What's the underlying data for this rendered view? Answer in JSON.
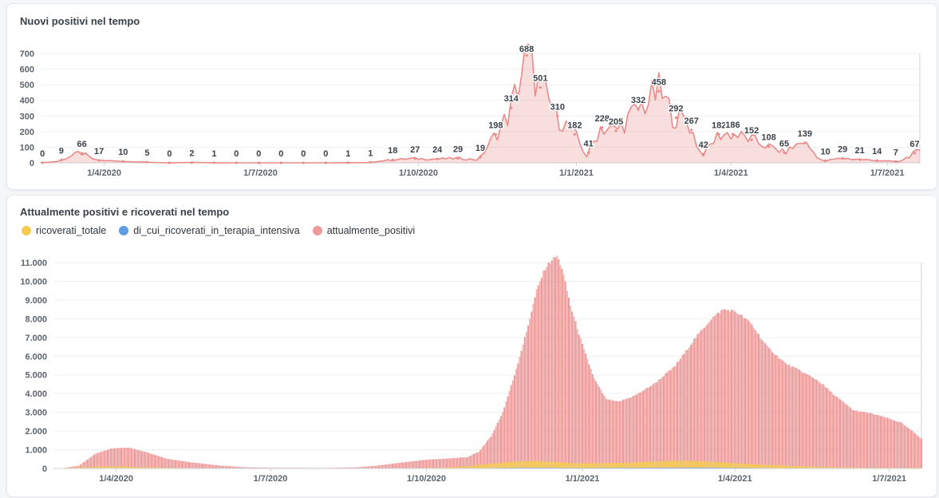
{
  "chart_data": [
    {
      "type": "area",
      "title": "Nuovi positivi nel tempo",
      "xlabel": "",
      "ylabel": "",
      "ylim": [
        0,
        700
      ],
      "y_ticks": [
        "0",
        "100",
        "200",
        "300",
        "400",
        "500",
        "600",
        "700"
      ],
      "x_range": [
        "2020-02-24",
        "2021-07-20"
      ],
      "x_ticks": [
        {
          "date": "2020-04-01",
          "label": "1/4/2020"
        },
        {
          "date": "2020-07-01",
          "label": "1/7/2020"
        },
        {
          "date": "2020-10-01",
          "label": "1/10/2020"
        },
        {
          "date": "2021-01-01",
          "label": "1/1/2021"
        },
        {
          "date": "2021-04-01",
          "label": "1/4/2021"
        },
        {
          "date": "2021-07-01",
          "label": "1/7/2021"
        }
      ],
      "grid": true,
      "color": "#ea8a8a",
      "series": [
        {
          "points": [
            [
              "2020-02-24",
              0
            ],
            [
              "2020-03-05",
              9
            ],
            [
              "2020-03-18",
              66
            ],
            [
              "2020-03-27",
              17
            ],
            [
              "2020-04-10",
              10
            ],
            [
              "2020-04-24",
              5
            ],
            [
              "2020-05-07",
              0
            ],
            [
              "2020-05-20",
              2
            ],
            [
              "2020-06-02",
              1
            ],
            [
              "2020-06-15",
              0
            ],
            [
              "2020-06-28",
              0
            ],
            [
              "2020-07-11",
              0
            ],
            [
              "2020-07-24",
              0
            ],
            [
              "2020-08-06",
              0
            ],
            [
              "2020-08-19",
              1
            ],
            [
              "2020-09-01",
              1
            ],
            [
              "2020-09-14",
              18
            ],
            [
              "2020-09-27",
              27
            ],
            [
              "2020-10-10",
              24
            ],
            [
              "2020-10-23",
              29
            ],
            [
              "2020-11-05",
              19
            ],
            [
              "2020-11-16",
              198
            ],
            [
              "2020-11-23",
              314
            ],
            [
              "2020-12-03",
              688
            ],
            [
              "2020-12-10",
              501
            ],
            [
              "2020-12-20",
              310
            ],
            [
              "2020-12-31",
              182
            ],
            [
              "2021-01-07",
              41
            ],
            [
              "2021-01-15",
              228
            ],
            [
              "2021-01-24",
              205
            ],
            [
              "2021-02-05",
              332
            ],
            [
              "2021-02-18",
              458
            ],
            [
              "2021-02-27",
              292
            ],
            [
              "2021-03-07",
              267
            ],
            [
              "2021-03-15",
              42
            ],
            [
              "2021-03-25",
              182
            ],
            [
              "2021-04-01",
              186
            ],
            [
              "2021-04-12",
              152
            ],
            [
              "2021-04-22",
              108
            ],
            [
              "2021-05-02",
              65
            ],
            [
              "2021-05-13",
              139
            ],
            [
              "2021-05-24",
              10
            ],
            [
              "2021-06-04",
              29
            ],
            [
              "2021-06-15",
              21
            ],
            [
              "2021-06-26",
              14
            ],
            [
              "2021-07-08",
              7
            ],
            [
              "2021-07-18",
              67
            ]
          ]
        }
      ],
      "data_labels": [
        {
          "date": "2020-02-25",
          "label": "0"
        },
        {
          "date": "2020-03-07",
          "label": "9"
        },
        {
          "date": "2020-03-19",
          "label": "66"
        },
        {
          "date": "2020-03-29",
          "label": "17"
        },
        {
          "date": "2020-04-12",
          "label": "10"
        },
        {
          "date": "2020-04-26",
          "label": "5"
        },
        {
          "date": "2020-05-09",
          "label": "0"
        },
        {
          "date": "2020-05-22",
          "label": "2"
        },
        {
          "date": "2020-06-04",
          "label": "1"
        },
        {
          "date": "2020-06-17",
          "label": "0"
        },
        {
          "date": "2020-06-30",
          "label": "0"
        },
        {
          "date": "2020-07-13",
          "label": "0"
        },
        {
          "date": "2020-07-26",
          "label": "0"
        },
        {
          "date": "2020-08-08",
          "label": "0"
        },
        {
          "date": "2020-08-21",
          "label": "1"
        },
        {
          "date": "2020-09-03",
          "label": "1"
        },
        {
          "date": "2020-09-16",
          "label": "18"
        },
        {
          "date": "2020-09-29",
          "label": "27"
        },
        {
          "date": "2020-10-12",
          "label": "24"
        },
        {
          "date": "2020-10-24",
          "label": "29"
        },
        {
          "date": "2020-11-06",
          "label": "19"
        },
        {
          "date": "2020-11-15",
          "label": "198"
        },
        {
          "date": "2020-11-24",
          "label": "314"
        },
        {
          "date": "2020-12-03",
          "label": "688"
        },
        {
          "date": "2020-12-11",
          "label": "501"
        },
        {
          "date": "2020-12-21",
          "label": "310"
        },
        {
          "date": "2020-12-31",
          "label": "182"
        },
        {
          "date": "2021-01-08",
          "label": "41"
        },
        {
          "date": "2021-01-16",
          "label": "228"
        },
        {
          "date": "2021-01-24",
          "label": "205"
        },
        {
          "date": "2021-02-06",
          "label": "332"
        },
        {
          "date": "2021-02-18",
          "label": "458"
        },
        {
          "date": "2021-02-28",
          "label": "292"
        },
        {
          "date": "2021-03-09",
          "label": "267"
        },
        {
          "date": "2021-03-16",
          "label": "42"
        },
        {
          "date": "2021-03-25",
          "label": "182"
        },
        {
          "date": "2021-04-02",
          "label": "186"
        },
        {
          "date": "2021-04-13",
          "label": "152"
        },
        {
          "date": "2021-04-23",
          "label": "108"
        },
        {
          "date": "2021-05-02",
          "label": "65"
        },
        {
          "date": "2021-05-14",
          "label": "139"
        },
        {
          "date": "2021-05-26",
          "label": "10"
        },
        {
          "date": "2021-06-05",
          "label": "29"
        },
        {
          "date": "2021-06-15",
          "label": "21"
        },
        {
          "date": "2021-06-25",
          "label": "14"
        },
        {
          "date": "2021-07-06",
          "label": "7"
        },
        {
          "date": "2021-07-17",
          "label": "67"
        }
      ]
    },
    {
      "type": "bar",
      "title": "Attualmente positivi e ricoverati nel tempo",
      "xlabel": "",
      "ylabel": "",
      "ylim": [
        0,
        11000
      ],
      "y_ticks": [
        "0",
        "1.000",
        "2.000",
        "3.000",
        "4.000",
        "5.000",
        "6.000",
        "7.000",
        "8.000",
        "9.000",
        "10.000",
        "11.000"
      ],
      "x_range": [
        "2020-02-24",
        "2021-07-20"
      ],
      "x_ticks": [
        {
          "date": "2020-04-01",
          "label": "1/4/2020"
        },
        {
          "date": "2020-07-01",
          "label": "1/7/2020"
        },
        {
          "date": "2020-10-01",
          "label": "1/10/2020"
        },
        {
          "date": "2021-01-01",
          "label": "1/1/2021"
        },
        {
          "date": "2021-04-01",
          "label": "1/4/2021"
        },
        {
          "date": "2021-07-01",
          "label": "1/7/2021"
        }
      ],
      "grid": true,
      "legend": "top-left",
      "series": [
        {
          "name": "ricoverati_totale",
          "color": "#f5cc4f",
          "points": [
            [
              "2020-02-24",
              0
            ],
            [
              "2020-03-20",
              90
            ],
            [
              "2020-04-02",
              110
            ],
            [
              "2020-04-20",
              60
            ],
            [
              "2020-05-15",
              20
            ],
            [
              "2020-06-15",
              5
            ],
            [
              "2020-08-15",
              5
            ],
            [
              "2020-09-15",
              15
            ],
            [
              "2020-10-10",
              40
            ],
            [
              "2020-10-25",
              110
            ],
            [
              "2020-11-10",
              280
            ],
            [
              "2020-11-25",
              380
            ],
            [
              "2020-12-05",
              400
            ],
            [
              "2020-12-20",
              320
            ],
            [
              "2021-01-01",
              270
            ],
            [
              "2021-01-25",
              300
            ],
            [
              "2021-02-15",
              380
            ],
            [
              "2021-03-01",
              420
            ],
            [
              "2021-03-15",
              380
            ],
            [
              "2021-04-05",
              260
            ],
            [
              "2021-04-25",
              170
            ],
            [
              "2021-05-15",
              100
            ],
            [
              "2021-06-05",
              50
            ],
            [
              "2021-07-01",
              30
            ],
            [
              "2021-07-20",
              40
            ]
          ]
        },
        {
          "name": "di_cui_ricoverati_in_terapia_intensiva",
          "color": "#5f9ee4",
          "points": [
            [
              "2020-02-24",
              0
            ],
            [
              "2020-03-25",
              15
            ],
            [
              "2020-04-05",
              18
            ],
            [
              "2020-05-01",
              5
            ],
            [
              "2020-06-01",
              0
            ],
            [
              "2020-10-15",
              5
            ],
            [
              "2020-11-20",
              35
            ],
            [
              "2020-12-05",
              40
            ],
            [
              "2021-01-01",
              30
            ],
            [
              "2021-02-20",
              45
            ],
            [
              "2021-03-10",
              50
            ],
            [
              "2021-04-10",
              30
            ],
            [
              "2021-05-15",
              12
            ],
            [
              "2021-07-20",
              3
            ]
          ]
        },
        {
          "name": "attualmente_positivi",
          "color": "#ed9a9a",
          "points": [
            [
              "2020-02-24",
              0
            ],
            [
              "2020-03-01",
              20
            ],
            [
              "2020-03-10",
              150
            ],
            [
              "2020-03-20",
              800
            ],
            [
              "2020-03-30",
              1080
            ],
            [
              "2020-04-08",
              1120
            ],
            [
              "2020-04-18",
              900
            ],
            [
              "2020-05-01",
              520
            ],
            [
              "2020-05-15",
              330
            ],
            [
              "2020-06-01",
              160
            ],
            [
              "2020-06-15",
              70
            ],
            [
              "2020-07-01",
              40
            ],
            [
              "2020-08-01",
              30
            ],
            [
              "2020-08-20",
              60
            ],
            [
              "2020-09-01",
              140
            ],
            [
              "2020-09-15",
              300
            ],
            [
              "2020-10-01",
              470
            ],
            [
              "2020-10-15",
              540
            ],
            [
              "2020-10-25",
              600
            ],
            [
              "2020-11-01",
              900
            ],
            [
              "2020-11-08",
              1700
            ],
            [
              "2020-11-15",
              3000
            ],
            [
              "2020-11-22",
              5000
            ],
            [
              "2020-11-29",
              7300
            ],
            [
              "2020-12-05",
              9500
            ],
            [
              "2020-12-10",
              10700
            ],
            [
              "2020-12-14",
              11150
            ],
            [
              "2020-12-17",
              11350
            ],
            [
              "2020-12-20",
              10700
            ],
            [
              "2020-12-25",
              8700
            ],
            [
              "2021-01-01",
              6600
            ],
            [
              "2021-01-08",
              4800
            ],
            [
              "2021-01-15",
              3700
            ],
            [
              "2021-01-22",
              3550
            ],
            [
              "2021-02-01",
              3900
            ],
            [
              "2021-02-12",
              4500
            ],
            [
              "2021-02-25",
              5500
            ],
            [
              "2021-03-08",
              6900
            ],
            [
              "2021-03-18",
              8000
            ],
            [
              "2021-03-25",
              8500
            ],
            [
              "2021-04-01",
              8400
            ],
            [
              "2021-04-10",
              7800
            ],
            [
              "2021-04-20",
              6500
            ],
            [
              "2021-05-01",
              5600
            ],
            [
              "2021-05-10",
              5200
            ],
            [
              "2021-05-20",
              4700
            ],
            [
              "2021-05-30",
              3900
            ],
            [
              "2021-06-10",
              3100
            ],
            [
              "2021-06-20",
              2950
            ],
            [
              "2021-06-28",
              2750
            ],
            [
              "2021-07-08",
              2450
            ],
            [
              "2021-07-16",
              1900
            ],
            [
              "2021-07-20",
              1600
            ]
          ]
        }
      ]
    }
  ]
}
